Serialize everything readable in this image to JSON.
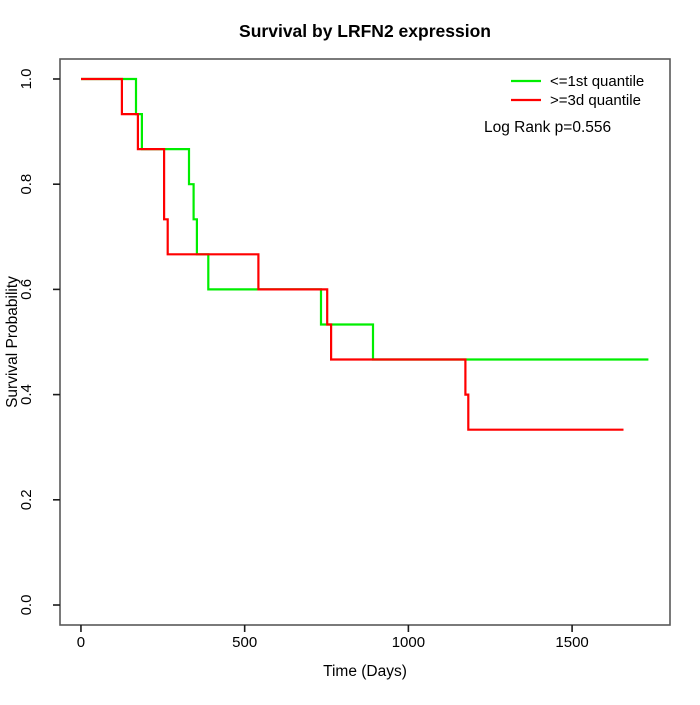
{
  "figure": {
    "title": "Survival by LRFN2 expression"
  },
  "chart_data": {
    "type": "line",
    "subtype": "kaplan_meier_step",
    "title": "Survival by LRFN2 expression",
    "xlabel": "Time (Days)",
    "ylabel": "Survival Probability",
    "xlim": [
      -64,
      1799
    ],
    "ylim": [
      -0.038,
      1.038
    ],
    "xticks": [
      {
        "v": 0,
        "label": "0"
      },
      {
        "v": 500,
        "label": "500"
      },
      {
        "v": 1000,
        "label": "1000"
      },
      {
        "v": 1500,
        "label": "1500"
      }
    ],
    "yticks": [
      {
        "v": 0.0,
        "label": "0.0"
      },
      {
        "v": 0.2,
        "label": "0.2"
      },
      {
        "v": 0.4,
        "label": "0.4"
      },
      {
        "v": 0.6,
        "label": "0.6"
      },
      {
        "v": 0.8,
        "label": "0.8"
      },
      {
        "v": 1.0,
        "label": "1.0"
      }
    ],
    "grid": false,
    "legend": {
      "position": "top-right",
      "entries": [
        {
          "label": "<=1st quantile",
          "color": "#00ee00"
        },
        {
          "label": ">=3d quantile",
          "color": "#ff0000"
        }
      ]
    },
    "annotation": "Log Rank p=0.556",
    "series": [
      {
        "name": "<=1st quantile",
        "color": "#00ee00",
        "steps": [
          [
            0,
            1.0
          ],
          [
            168,
            0.9333
          ],
          [
            186,
            0.8667
          ],
          [
            330,
            0.8
          ],
          [
            344,
            0.7333
          ],
          [
            354,
            0.6667
          ],
          [
            389,
            0.6
          ],
          [
            733,
            0.5333
          ],
          [
            892,
            0.4667
          ]
        ],
        "end_time": 1733
      },
      {
        "name": ">=3d quantile",
        "color": "#ff0000",
        "steps": [
          [
            0,
            1.0
          ],
          [
            125,
            0.9333
          ],
          [
            174,
            0.8667
          ],
          [
            254,
            0.7333
          ],
          [
            265,
            0.6667
          ],
          [
            542,
            0.6
          ],
          [
            752,
            0.5333
          ],
          [
            764,
            0.4667
          ],
          [
            1174,
            0.4
          ],
          [
            1183,
            0.3333
          ]
        ],
        "end_time": 1657
      }
    ],
    "colors": {
      "box": "#595959",
      "tick": "#1a1a1a",
      "text": "#000000",
      "background": "#ffffff"
    }
  }
}
